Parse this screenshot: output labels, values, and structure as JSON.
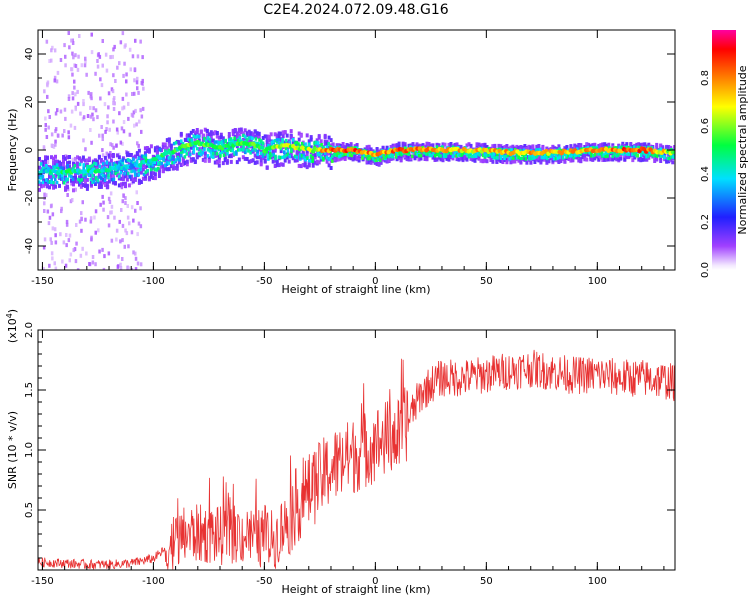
{
  "figure": {
    "title": "C2E4.2024.072.09.48.G16"
  },
  "chart_data": [
    {
      "type": "heatmap",
      "title": "C2E4.2024.072.09.48.G16",
      "xlabel": "Height of straight line (km)",
      "ylabel": "Frequency (Hz)",
      "xlim": [
        -152,
        135
      ],
      "ylim": [
        -50,
        50
      ],
      "xticks": [
        -150,
        -100,
        -50,
        0,
        50,
        100
      ],
      "yticks": [
        -40,
        -20,
        0,
        20,
        40
      ],
      "colorbar": {
        "label": "Normalized spectral amplitude",
        "range": [
          0,
          1
        ],
        "ticks": [
          "0.0",
          "0.2",
          "0.4",
          "0.6",
          "0.8"
        ]
      },
      "ridge": {
        "x": [
          -152,
          -140,
          -130,
          -120,
          -110,
          -100,
          -95,
          -90,
          -85,
          -80,
          -75,
          -70,
          -65,
          -60,
          -55,
          -50,
          -45,
          -40,
          -35,
          -30,
          -25,
          -20,
          -10,
          0,
          10,
          20,
          40,
          60,
          80,
          100,
          120,
          135
        ],
        "freq": [
          -9,
          -9,
          -9,
          -8,
          -7,
          -4,
          -2,
          0,
          2,
          3,
          2,
          1,
          2,
          3,
          2,
          0,
          1,
          2,
          1,
          0,
          0,
          0,
          0,
          -2,
          0,
          0,
          0,
          -1,
          -1,
          0,
          0,
          -1
        ],
        "amplitude": [
          0.35,
          0.45,
          0.45,
          0.4,
          0.35,
          0.45,
          0.45,
          0.5,
          0.55,
          0.55,
          0.55,
          0.5,
          0.5,
          0.55,
          0.5,
          0.55,
          0.6,
          0.6,
          0.6,
          0.6,
          0.7,
          0.8,
          0.85,
          0.75,
          0.85,
          0.8,
          0.7,
          0.75,
          0.7,
          0.75,
          0.85,
          0.6
        ]
      },
      "scale": "linear"
    },
    {
      "type": "line",
      "xlabel": "Height of straight line (km)",
      "ylabel": "SNR (10 * v/v)",
      "y_multiplier": "(x10^4)",
      "xlim": [
        -152,
        135
      ],
      "ylim": [
        0,
        20000
      ],
      "xticks": [
        -150,
        -100,
        -50,
        0,
        50,
        100
      ],
      "yticks": [
        5000,
        10000,
        15000,
        20000
      ],
      "ytick_labels": [
        "0.5",
        "1.0",
        "1.5",
        "2.0"
      ],
      "series": [
        {
          "color": "#e83232",
          "x": [
            -152,
            -140,
            -130,
            -120,
            -110,
            -100,
            -95,
            -90,
            -85,
            -80,
            -75,
            -70,
            -65,
            -60,
            -55,
            -50,
            -45,
            -40,
            -35,
            -30,
            -25,
            -20,
            -15,
            -10,
            -5,
            0,
            5,
            10,
            15,
            20,
            25,
            30,
            40,
            50,
            60,
            70,
            80,
            90,
            100,
            110,
            120,
            130,
            135
          ],
          "y": [
            500,
            400,
            300,
            300,
            400,
            800,
            1500,
            2200,
            3000,
            3000,
            3000,
            2800,
            3000,
            2900,
            2800,
            2500,
            2600,
            4000,
            5500,
            6500,
            7500,
            8500,
            9000,
            9500,
            10000,
            10500,
            11000,
            11000,
            12500,
            14500,
            15500,
            16000,
            16000,
            16300,
            16600,
            16800,
            16500,
            16200,
            16300,
            16000,
            16000,
            15800,
            15600
          ]
        }
      ]
    }
  ],
  "colors": {
    "line": "#e83232"
  }
}
